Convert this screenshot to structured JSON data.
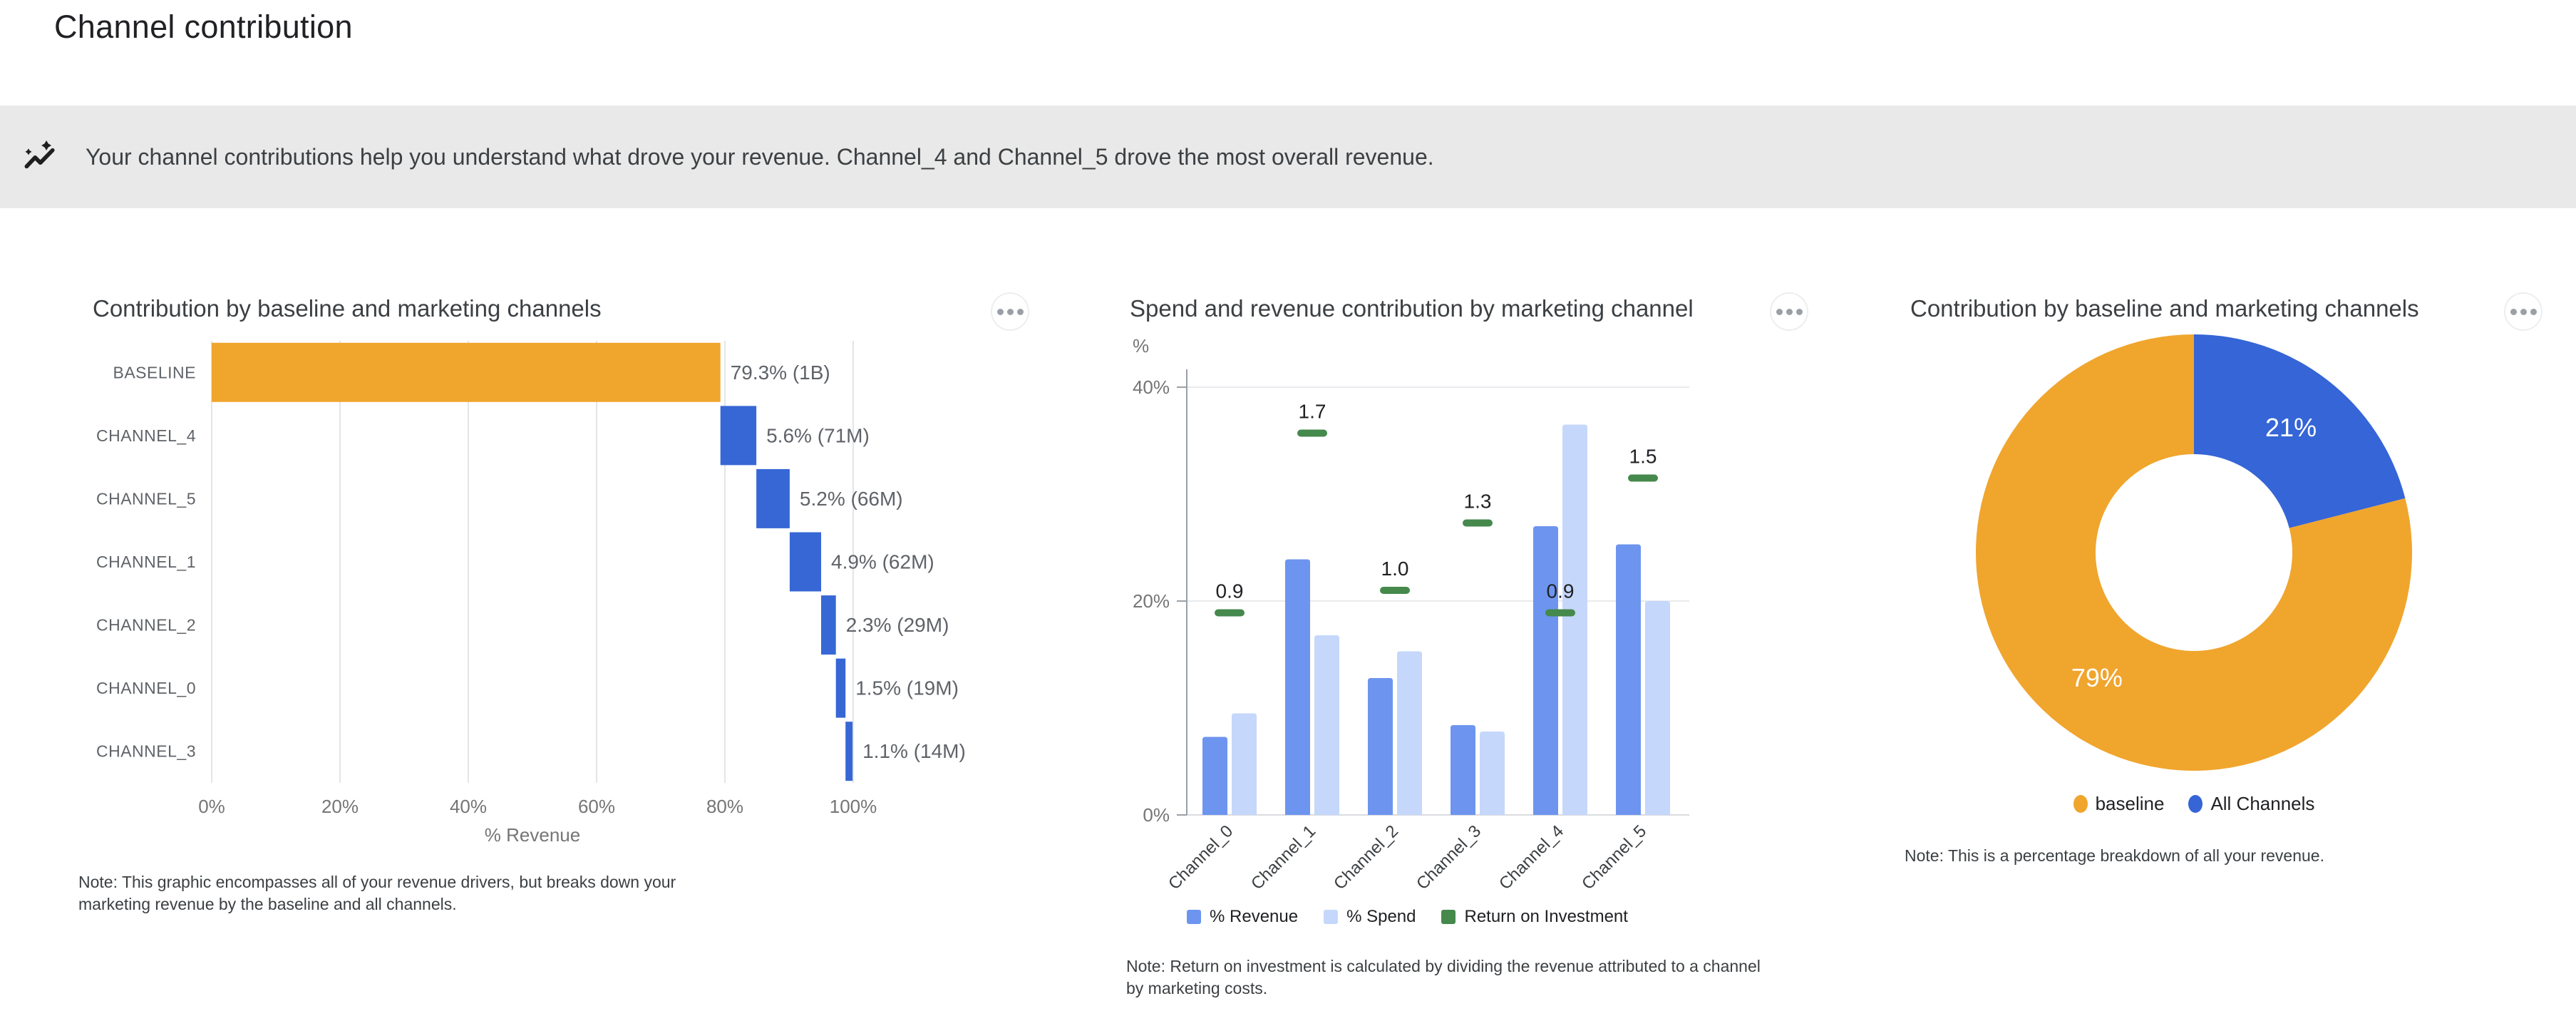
{
  "page": {
    "title": "Channel contribution"
  },
  "banner": {
    "icon": "insights-icon",
    "text": "Your channel contributions help you understand what drove your revenue. Channel_4 and Channel_5 drove the most overall revenue."
  },
  "colors": {
    "baseline_orange": "#F0A52D",
    "channel_blue": "#3767D5",
    "donut_blue": "#3565D6",
    "revenue_blue": "#6D95EF",
    "spend_blue": "#C5D7FB",
    "roi_green": "#45894C"
  },
  "cards": [
    {
      "title": "Contribution by baseline and marketing channels",
      "menu": "more-options",
      "note": "Note: This graphic encompasses all of your revenue drivers, but breaks down your marketing revenue by the baseline and all channels."
    },
    {
      "title": "Spend and revenue contribution by marketing channel",
      "menu": "more-options",
      "note": "Note: Return on investment is calculated by dividing the revenue attributed to a channel by marketing costs."
    },
    {
      "title": "Contribution by baseline and marketing channels",
      "menu": "more-options",
      "note": "Note: This is a percentage breakdown of all your revenue."
    }
  ],
  "chart_data": [
    {
      "type": "bar",
      "subtype": "horizontal-waterfall",
      "title": "Contribution by baseline and marketing channels",
      "categories": [
        "BASELINE",
        "CHANNEL_4",
        "CHANNEL_5",
        "CHANNEL_1",
        "CHANNEL_2",
        "CHANNEL_0",
        "CHANNEL_3"
      ],
      "values": [
        79.3,
        5.6,
        5.2,
        4.9,
        2.3,
        1.5,
        1.1
      ],
      "value_labels": [
        "79.3% (1B)",
        "5.6% (71M)",
        "5.2% (66M)",
        "4.9% (62M)",
        "2.3% (29M)",
        "1.5% (19M)",
        "1.1% (14M)"
      ],
      "xlabel": "% Revenue",
      "x_ticks": [
        "0%",
        "20%",
        "40%",
        "60%",
        "80%",
        "100%"
      ],
      "x_tick_values": [
        0,
        20,
        40,
        60,
        80,
        100
      ],
      "xlim": [
        0,
        100
      ],
      "grid": "vertical"
    },
    {
      "type": "bar",
      "subtype": "grouped-with-roi-markers",
      "title": "Spend and revenue contribution by marketing channel",
      "categories": [
        "Channel_0",
        "Channel_1",
        "Channel_2",
        "Channel_3",
        "Channel_4",
        "Channel_5"
      ],
      "series": [
        {
          "name": "% Revenue",
          "color_key": "revenue_blue",
          "values": [
            7.3,
            23.9,
            12.8,
            8.4,
            27.0,
            25.3
          ]
        },
        {
          "name": "% Spend",
          "color_key": "spend_blue",
          "values": [
            9.5,
            16.8,
            15.3,
            7.8,
            36.5,
            20.0
          ]
        },
        {
          "name": "Return on Investment",
          "color_key": "roi_green",
          "values": [
            0.9,
            1.7,
            1.0,
            1.3,
            0.9,
            1.5
          ],
          "axis_scale_pct_per_unit": 21
        }
      ],
      "ylabel": "%",
      "y_ticks": [
        "0%",
        "20%",
        "40%"
      ],
      "y_tick_values": [
        0,
        20,
        40
      ],
      "ylim": [
        0,
        42
      ],
      "grid": "horizontal",
      "legend_position": "bottom"
    },
    {
      "type": "pie",
      "subtype": "donut",
      "title": "Contribution by baseline and marketing channels",
      "slices": [
        {
          "name": "All Channels",
          "pct": 21,
          "label": "21%",
          "color_key": "donut_blue"
        },
        {
          "name": "baseline",
          "pct": 79,
          "label": "79%",
          "color_key": "baseline_orange"
        }
      ],
      "start": "top",
      "direction": "clockwise",
      "legend": [
        {
          "name": "baseline",
          "color_key": "baseline_orange"
        },
        {
          "name": "All Channels",
          "color_key": "donut_blue"
        }
      ],
      "legend_position": "bottom"
    }
  ]
}
